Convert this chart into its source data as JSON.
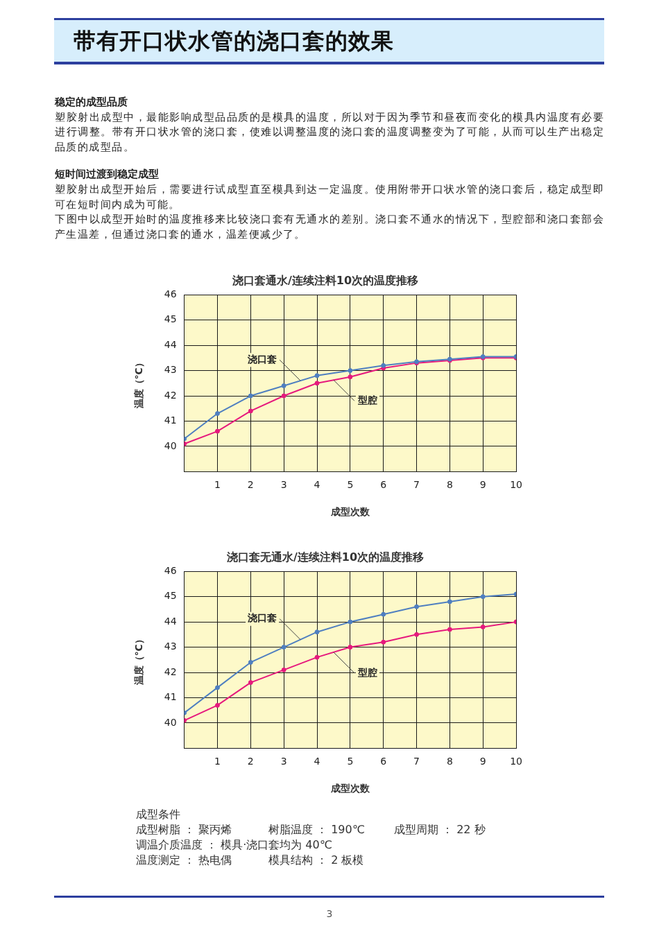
{
  "chart_data": [
    {
      "type": "other",
      "title": "带有开口状水管的浇口套的效果"
    },
    {
      "type": "other",
      "title": "稳定的成型品质",
      "annotations": [
        "塑胶射出成型中，最能影响成型品品质的是模具的温度，所以对于因为季节和昼夜而变化的模具内温度有必要进行调整。带有开口状水管的浇口套，使难以调整温度的浇口套的温度调整变为了可能，从而可以生产出稳定品质的成型品。"
      ]
    },
    {
      "type": "other",
      "title": "短时间过渡到稳定成型",
      "annotations": [
        "塑胶射出成型开始后，需要进行试成型直至模具到达一定温度。使用附带开口状水管的浇口套后，稳定成型即可在短时间内成为可能。",
        "下图中以成型开始时的温度推移来比较浇口套有无通水的差别。浇口套不通水的情况下，型腔部和浇口套部会产生温差，但通过浇口套的通水，温差便减少了。"
      ]
    },
    {
      "type": "line",
      "title": "浇口套通水/连续注料10次的温度推移",
      "xlabel": "成型次数",
      "ylabel": "温度（℃）",
      "x": [
        0,
        1,
        2,
        3,
        4,
        5,
        6,
        7,
        8,
        9,
        10
      ],
      "series": [
        {
          "name": "浇口套",
          "color": "#4f7fc0",
          "values": [
            40.3,
            41.3,
            42.0,
            42.4,
            42.8,
            43.0,
            43.2,
            43.35,
            43.45,
            43.55,
            43.55
          ]
        },
        {
          "name": "型腔",
          "color": "#e6197d",
          "values": [
            40.1,
            40.6,
            41.4,
            42.0,
            42.5,
            42.75,
            43.1,
            43.3,
            43.4,
            43.5,
            43.5
          ]
        }
      ],
      "xlim": [
        0,
        10
      ],
      "xticks": [
        1,
        2,
        3,
        4,
        5,
        6,
        7,
        8,
        9,
        10
      ],
      "ylim": [
        39,
        46
      ],
      "yticks": [
        40,
        41,
        42,
        43,
        44,
        45,
        46
      ],
      "grid": true,
      "marker": "circle",
      "line_style": "solid"
    },
    {
      "type": "line",
      "title": "浇口套无通水/连续注料10次的温度推移",
      "xlabel": "成型次数",
      "ylabel": "温度（℃）",
      "x": [
        0,
        1,
        2,
        3,
        4,
        5,
        6,
        7,
        8,
        9,
        10
      ],
      "series": [
        {
          "name": "浇口套",
          "color": "#4f7fc0",
          "values": [
            40.4,
            41.4,
            42.4,
            43.0,
            43.6,
            44.0,
            44.3,
            44.6,
            44.8,
            45.0,
            45.1
          ]
        },
        {
          "name": "型腔",
          "color": "#e6197d",
          "values": [
            40.1,
            40.7,
            41.6,
            42.1,
            42.6,
            43.0,
            43.2,
            43.5,
            43.7,
            43.8,
            44.0
          ]
        }
      ],
      "xlim": [
        0,
        10
      ],
      "xticks": [
        1,
        2,
        3,
        4,
        5,
        6,
        7,
        8,
        9,
        10
      ],
      "ylim": [
        39,
        46
      ],
      "yticks": [
        40,
        41,
        42,
        43,
        44,
        45,
        46
      ],
      "grid": true,
      "marker": "circle",
      "line_style": "solid"
    },
    {
      "type": "other",
      "title": "成型条件",
      "annotations": [
        "成型树脂 ： 聚丙烯",
        "树脂温度 ： 190℃",
        "成型周期 ： 22 秒",
        "调温介质温度 ： 模具·浇口套均为 40℃",
        "温度测定 ： 热电偶",
        "模具结构 ： 2 板模"
      ]
    },
    {
      "type": "other",
      "annotations": [
        "3"
      ]
    }
  ]
}
